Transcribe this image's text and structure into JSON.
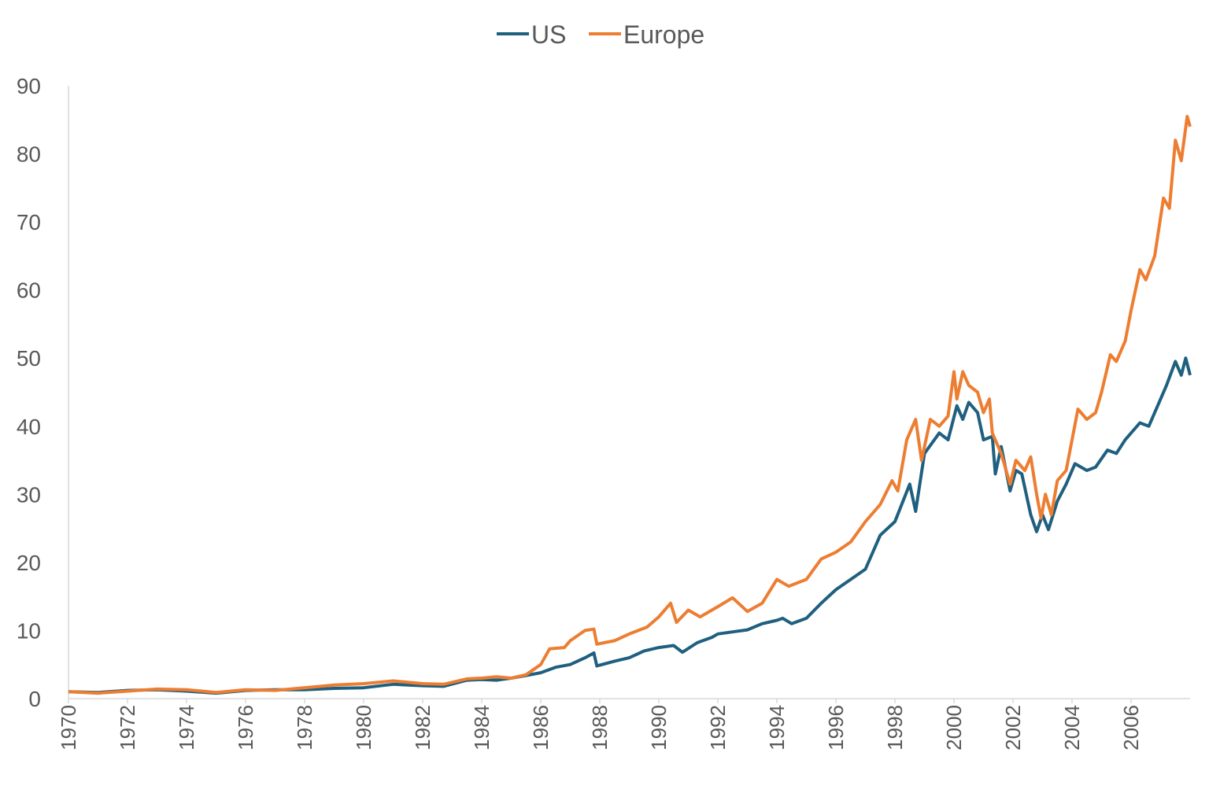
{
  "chart_data": {
    "type": "line",
    "title": "",
    "xlabel": "",
    "ylabel": "",
    "xlim": [
      1970,
      2008
    ],
    "ylim": [
      0,
      90
    ],
    "yticks": [
      0,
      10,
      20,
      30,
      40,
      50,
      60,
      70,
      80,
      90
    ],
    "xticks": [
      1970,
      1972,
      1974,
      1976,
      1978,
      1980,
      1982,
      1984,
      1986,
      1988,
      1990,
      1992,
      1994,
      1996,
      1998,
      2000,
      2002,
      2004,
      2006
    ],
    "grid": false,
    "legend": "top",
    "series": [
      {
        "name": "US",
        "color": "#1f5f7f",
        "points": [
          [
            1970,
            1.0
          ],
          [
            1971,
            0.9
          ],
          [
            1972,
            1.2
          ],
          [
            1973,
            1.3
          ],
          [
            1974,
            1.1
          ],
          [
            1975,
            0.8
          ],
          [
            1976,
            1.2
          ],
          [
            1977,
            1.3
          ],
          [
            1978,
            1.3
          ],
          [
            1979,
            1.5
          ],
          [
            1980,
            1.6
          ],
          [
            1981,
            2.1
          ],
          [
            1982,
            1.9
          ],
          [
            1982.7,
            1.8
          ],
          [
            1983.5,
            2.7
          ],
          [
            1984,
            2.8
          ],
          [
            1984.5,
            2.7
          ],
          [
            1985,
            3.0
          ],
          [
            1985.5,
            3.4
          ],
          [
            1986,
            3.8
          ],
          [
            1986.5,
            4.6
          ],
          [
            1987,
            5.0
          ],
          [
            1987.5,
            6.0
          ],
          [
            1987.8,
            6.7
          ],
          [
            1987.9,
            4.8
          ],
          [
            1988.5,
            5.5
          ],
          [
            1989,
            6.0
          ],
          [
            1989.5,
            7.0
          ],
          [
            1990,
            7.5
          ],
          [
            1990.5,
            7.8
          ],
          [
            1990.8,
            6.8
          ],
          [
            1991.3,
            8.2
          ],
          [
            1991.8,
            9.0
          ],
          [
            1992,
            9.5
          ],
          [
            1992.5,
            9.8
          ],
          [
            1993,
            10.1
          ],
          [
            1993.5,
            11.0
          ],
          [
            1994,
            11.5
          ],
          [
            1994.2,
            11.8
          ],
          [
            1994.5,
            11.0
          ],
          [
            1995,
            11.8
          ],
          [
            1995.5,
            14.0
          ],
          [
            1996,
            16.0
          ],
          [
            1996.5,
            17.5
          ],
          [
            1997,
            19
          ],
          [
            1997.5,
            24
          ],
          [
            1998,
            26
          ],
          [
            1998.5,
            31.5
          ],
          [
            1998.7,
            27.5
          ],
          [
            1999,
            36
          ],
          [
            1999.5,
            39
          ],
          [
            1999.8,
            38
          ],
          [
            2000.1,
            43
          ],
          [
            2000.3,
            41
          ],
          [
            2000.5,
            43.5
          ],
          [
            2000.8,
            42
          ],
          [
            2001,
            38
          ],
          [
            2001.3,
            38.5
          ],
          [
            2001.4,
            33
          ],
          [
            2001.6,
            37
          ],
          [
            2001.9,
            30.5
          ],
          [
            2002.1,
            33.5
          ],
          [
            2002.3,
            33
          ],
          [
            2002.6,
            27
          ],
          [
            2002.8,
            24.5
          ],
          [
            2003,
            27
          ],
          [
            2003.2,
            24.8
          ],
          [
            2003.5,
            29
          ],
          [
            2003.8,
            31.5
          ],
          [
            2004.1,
            34.5
          ],
          [
            2004.5,
            33.5
          ],
          [
            2004.8,
            34
          ],
          [
            2005.2,
            36.5
          ],
          [
            2005.5,
            36
          ],
          [
            2005.8,
            38
          ],
          [
            2006.3,
            40.5
          ],
          [
            2006.6,
            40
          ],
          [
            2007,
            44
          ],
          [
            2007.2,
            46
          ],
          [
            2007.5,
            49.5
          ],
          [
            2007.7,
            47.5
          ],
          [
            2007.85,
            50
          ],
          [
            2008,
            47.5
          ]
        ]
      },
      {
        "name": "Europe",
        "color": "#ed7d31",
        "points": [
          [
            1970,
            1.0
          ],
          [
            1971,
            0.8
          ],
          [
            1972,
            1.1
          ],
          [
            1973,
            1.4
          ],
          [
            1974,
            1.3
          ],
          [
            1975,
            0.9
          ],
          [
            1976,
            1.3
          ],
          [
            1977,
            1.2
          ],
          [
            1978,
            1.6
          ],
          [
            1979,
            2.0
          ],
          [
            1980,
            2.2
          ],
          [
            1981,
            2.6
          ],
          [
            1982,
            2.2
          ],
          [
            1982.7,
            2.1
          ],
          [
            1983.5,
            2.9
          ],
          [
            1984,
            3.0
          ],
          [
            1984.5,
            3.2
          ],
          [
            1985,
            3.0
          ],
          [
            1985.5,
            3.5
          ],
          [
            1986,
            5.0
          ],
          [
            1986.3,
            7.3
          ],
          [
            1986.8,
            7.5
          ],
          [
            1987,
            8.5
          ],
          [
            1987.5,
            10.0
          ],
          [
            1987.8,
            10.2
          ],
          [
            1987.9,
            8.0
          ],
          [
            1988.5,
            8.5
          ],
          [
            1989,
            9.5
          ],
          [
            1989.6,
            10.5
          ],
          [
            1990,
            12
          ],
          [
            1990.4,
            14
          ],
          [
            1990.6,
            11.2
          ],
          [
            1991,
            13
          ],
          [
            1991.4,
            12
          ],
          [
            1992,
            13.5
          ],
          [
            1992.5,
            14.8
          ],
          [
            1993,
            12.8
          ],
          [
            1993.5,
            14.0
          ],
          [
            1994,
            17.5
          ],
          [
            1994.4,
            16.5
          ],
          [
            1995,
            17.5
          ],
          [
            1995.5,
            20.5
          ],
          [
            1996,
            21.5
          ],
          [
            1996.5,
            23
          ],
          [
            1997,
            26
          ],
          [
            1997.5,
            28.5
          ],
          [
            1997.9,
            32
          ],
          [
            1998.1,
            30.5
          ],
          [
            1998.4,
            38
          ],
          [
            1998.7,
            41
          ],
          [
            1998.9,
            35
          ],
          [
            1999.2,
            41
          ],
          [
            1999.5,
            40
          ],
          [
            1999.8,
            41.5
          ],
          [
            2000,
            48
          ],
          [
            2000.1,
            44
          ],
          [
            2000.3,
            48
          ],
          [
            2000.5,
            46
          ],
          [
            2000.8,
            45
          ],
          [
            2001,
            42
          ],
          [
            2001.2,
            44
          ],
          [
            2001.3,
            39
          ],
          [
            2001.6,
            36
          ],
          [
            2001.9,
            31.5
          ],
          [
            2002.1,
            35
          ],
          [
            2002.4,
            33.5
          ],
          [
            2002.6,
            35.5
          ],
          [
            2002.8,
            30
          ],
          [
            2002.95,
            26.5
          ],
          [
            2003.1,
            30
          ],
          [
            2003.3,
            27
          ],
          [
            2003.5,
            32
          ],
          [
            2003.8,
            33.5
          ],
          [
            2004,
            38
          ],
          [
            2004.2,
            42.5
          ],
          [
            2004.5,
            41
          ],
          [
            2004.8,
            42
          ],
          [
            2005,
            45
          ],
          [
            2005.3,
            50.5
          ],
          [
            2005.5,
            49.5
          ],
          [
            2005.8,
            52.5
          ],
          [
            2006,
            57
          ],
          [
            2006.3,
            63
          ],
          [
            2006.5,
            61.5
          ],
          [
            2006.8,
            65
          ],
          [
            2007.1,
            73.5
          ],
          [
            2007.3,
            72
          ],
          [
            2007.5,
            82
          ],
          [
            2007.7,
            79
          ],
          [
            2007.9,
            85.5
          ],
          [
            2008,
            84
          ]
        ]
      }
    ]
  }
}
